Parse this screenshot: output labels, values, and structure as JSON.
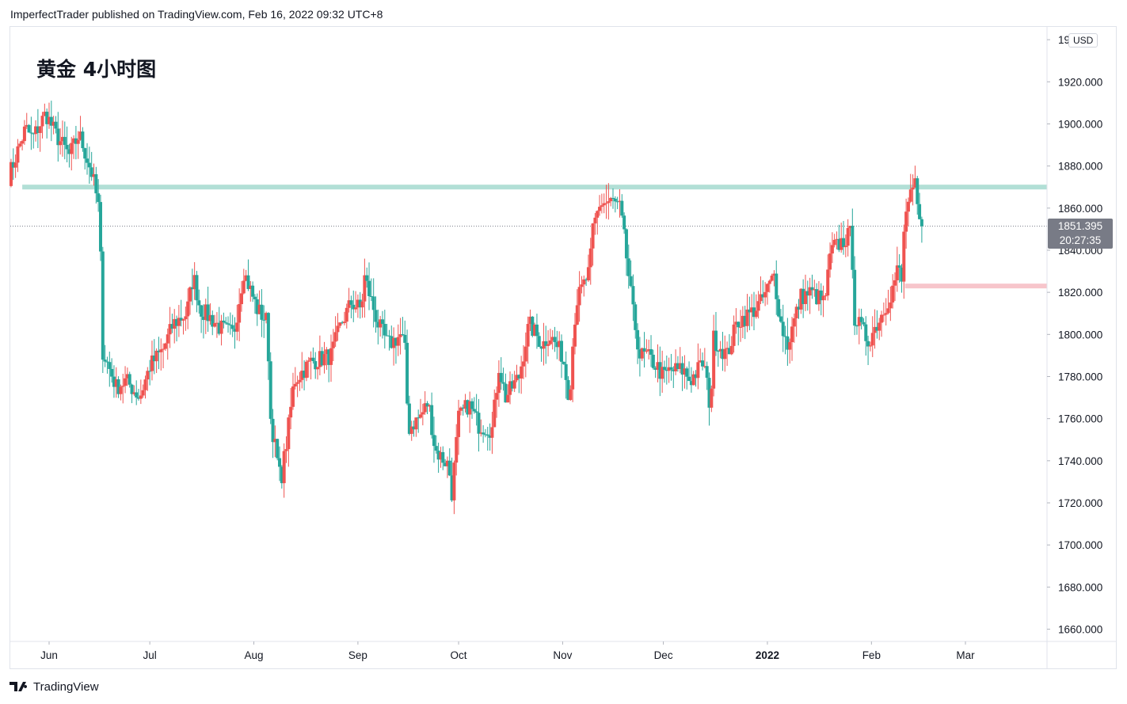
{
  "header": {
    "text": "ImperfectTrader published on TradingView.com, Feb 16, 2022 09:32 UTC+8"
  },
  "footer": {
    "brand": "TradingView"
  },
  "price_scale": {
    "currency": "USD"
  },
  "last_price": {
    "value": "1851.395",
    "countdown": "20:27:35"
  },
  "colors": {
    "up": "#ef5350",
    "down": "#26a69a",
    "resistance": "#b2dfd6",
    "support": "#f7c5cb"
  },
  "chart_data": {
    "type": "candlestick",
    "title": "黄金 4小时图",
    "ylim": [
      1650,
      1950
    ],
    "y_ticks": [
      "1660.000",
      "1680.000",
      "1700.000",
      "1720.000",
      "1740.000",
      "1760.000",
      "1780.000",
      "1800.000",
      "1820.000",
      "1840.000",
      "1860.000",
      "1880.000",
      "1900.000",
      "1920.000",
      "19"
    ],
    "x_ticks": [
      {
        "label": "Jun",
        "date": "2021-06-01",
        "bold": false
      },
      {
        "label": "Jul",
        "date": "2021-07-01",
        "bold": false
      },
      {
        "label": "Aug",
        "date": "2021-08-01",
        "bold": false
      },
      {
        "label": "Sep",
        "date": "2021-09-01",
        "bold": false
      },
      {
        "label": "Oct",
        "date": "2021-10-01",
        "bold": false
      },
      {
        "label": "Nov",
        "date": "2021-11-01",
        "bold": false
      },
      {
        "label": "Dec",
        "date": "2021-12-01",
        "bold": false
      },
      {
        "label": "2022",
        "date": "2022-01-01",
        "bold": true
      },
      {
        "label": "Feb",
        "date": "2022-02-01",
        "bold": false
      },
      {
        "label": "Mar",
        "date": "2022-03-01",
        "bold": false
      }
    ],
    "horizontal_levels": [
      {
        "name": "resistance",
        "price": 1870,
        "from": "2021-05-24",
        "color": "#b2dfd6"
      },
      {
        "name": "support",
        "price": 1823,
        "from": "2022-02-11",
        "color": "#f7c5cb"
      }
    ],
    "last_price_line": 1851.395,
    "close_path": [
      [
        "2021-05-20",
        1875
      ],
      [
        "2021-05-25",
        1898
      ],
      [
        "2021-05-27",
        1893
      ],
      [
        "2021-05-31",
        1905
      ],
      [
        "2021-06-03",
        1895
      ],
      [
        "2021-06-07",
        1885
      ],
      [
        "2021-06-10",
        1895
      ],
      [
        "2021-06-14",
        1875
      ],
      [
        "2021-06-16",
        1858
      ],
      [
        "2021-06-17",
        1792
      ],
      [
        "2021-06-21",
        1775
      ],
      [
        "2021-06-24",
        1778
      ],
      [
        "2021-06-28",
        1770
      ],
      [
        "2021-07-01",
        1785
      ],
      [
        "2021-07-05",
        1793
      ],
      [
        "2021-07-08",
        1805
      ],
      [
        "2021-07-12",
        1810
      ],
      [
        "2021-07-14",
        1828
      ],
      [
        "2021-07-16",
        1812
      ],
      [
        "2021-07-19",
        1808
      ],
      [
        "2021-07-22",
        1803
      ],
      [
        "2021-07-26",
        1800
      ],
      [
        "2021-07-29",
        1830
      ],
      [
        "2021-08-02",
        1812
      ],
      [
        "2021-08-05",
        1806
      ],
      [
        "2021-08-06",
        1760
      ],
      [
        "2021-08-09",
        1730
      ],
      [
        "2021-08-11",
        1752
      ],
      [
        "2021-08-13",
        1778
      ],
      [
        "2021-08-18",
        1787
      ],
      [
        "2021-08-24",
        1790
      ],
      [
        "2021-08-27",
        1805
      ],
      [
        "2021-08-30",
        1815
      ],
      [
        "2021-09-02",
        1812
      ],
      [
        "2021-09-03",
        1827
      ],
      [
        "2021-09-07",
        1805
      ],
      [
        "2021-09-10",
        1795
      ],
      [
        "2021-09-14",
        1800
      ],
      [
        "2021-09-15",
        1792
      ],
      [
        "2021-09-16",
        1755
      ],
      [
        "2021-09-20",
        1762
      ],
      [
        "2021-09-22",
        1768
      ],
      [
        "2021-09-24",
        1745
      ],
      [
        "2021-09-28",
        1738
      ],
      [
        "2021-09-29",
        1725
      ],
      [
        "2021-10-01",
        1760
      ],
      [
        "2021-10-04",
        1767
      ],
      [
        "2021-10-07",
        1757
      ],
      [
        "2021-10-11",
        1755
      ],
      [
        "2021-10-13",
        1785
      ],
      [
        "2021-10-15",
        1770
      ],
      [
        "2021-10-19",
        1780
      ],
      [
        "2021-10-22",
        1805
      ],
      [
        "2021-10-26",
        1795
      ],
      [
        "2021-10-28",
        1800
      ],
      [
        "2021-11-01",
        1790
      ],
      [
        "2021-11-03",
        1770
      ],
      [
        "2021-11-04",
        1795
      ],
      [
        "2021-11-05",
        1815
      ],
      [
        "2021-11-09",
        1830
      ],
      [
        "2021-11-10",
        1850
      ],
      [
        "2021-11-12",
        1862
      ],
      [
        "2021-11-16",
        1863
      ],
      [
        "2021-11-18",
        1860
      ],
      [
        "2021-11-19",
        1850
      ],
      [
        "2021-11-22",
        1810
      ],
      [
        "2021-11-24",
        1790
      ],
      [
        "2021-11-26",
        1790
      ],
      [
        "2021-11-29",
        1785
      ],
      [
        "2021-12-01",
        1780
      ],
      [
        "2021-12-03",
        1783
      ],
      [
        "2021-12-07",
        1783
      ],
      [
        "2021-12-09",
        1778
      ],
      [
        "2021-12-13",
        1787
      ],
      [
        "2021-12-15",
        1765
      ],
      [
        "2021-12-16",
        1798
      ],
      [
        "2021-12-20",
        1790
      ],
      [
        "2021-12-23",
        1806
      ],
      [
        "2021-12-27",
        1810
      ],
      [
        "2021-12-30",
        1815
      ],
      [
        "2022-01-03",
        1828
      ],
      [
        "2022-01-05",
        1805
      ],
      [
        "2022-01-07",
        1795
      ],
      [
        "2022-01-11",
        1818
      ],
      [
        "2022-01-14",
        1820
      ],
      [
        "2022-01-18",
        1815
      ],
      [
        "2022-01-20",
        1840
      ],
      [
        "2022-01-24",
        1845
      ],
      [
        "2022-01-26",
        1848
      ],
      [
        "2022-01-27",
        1808
      ],
      [
        "2022-01-31",
        1797
      ],
      [
        "2022-02-03",
        1806
      ],
      [
        "2022-02-07",
        1820
      ],
      [
        "2022-02-09",
        1832
      ],
      [
        "2022-02-10",
        1825
      ],
      [
        "2022-02-11",
        1858
      ],
      [
        "2022-02-14",
        1870
      ],
      [
        "2022-02-15",
        1855
      ],
      [
        "2022-02-16",
        1851.395
      ]
    ]
  }
}
